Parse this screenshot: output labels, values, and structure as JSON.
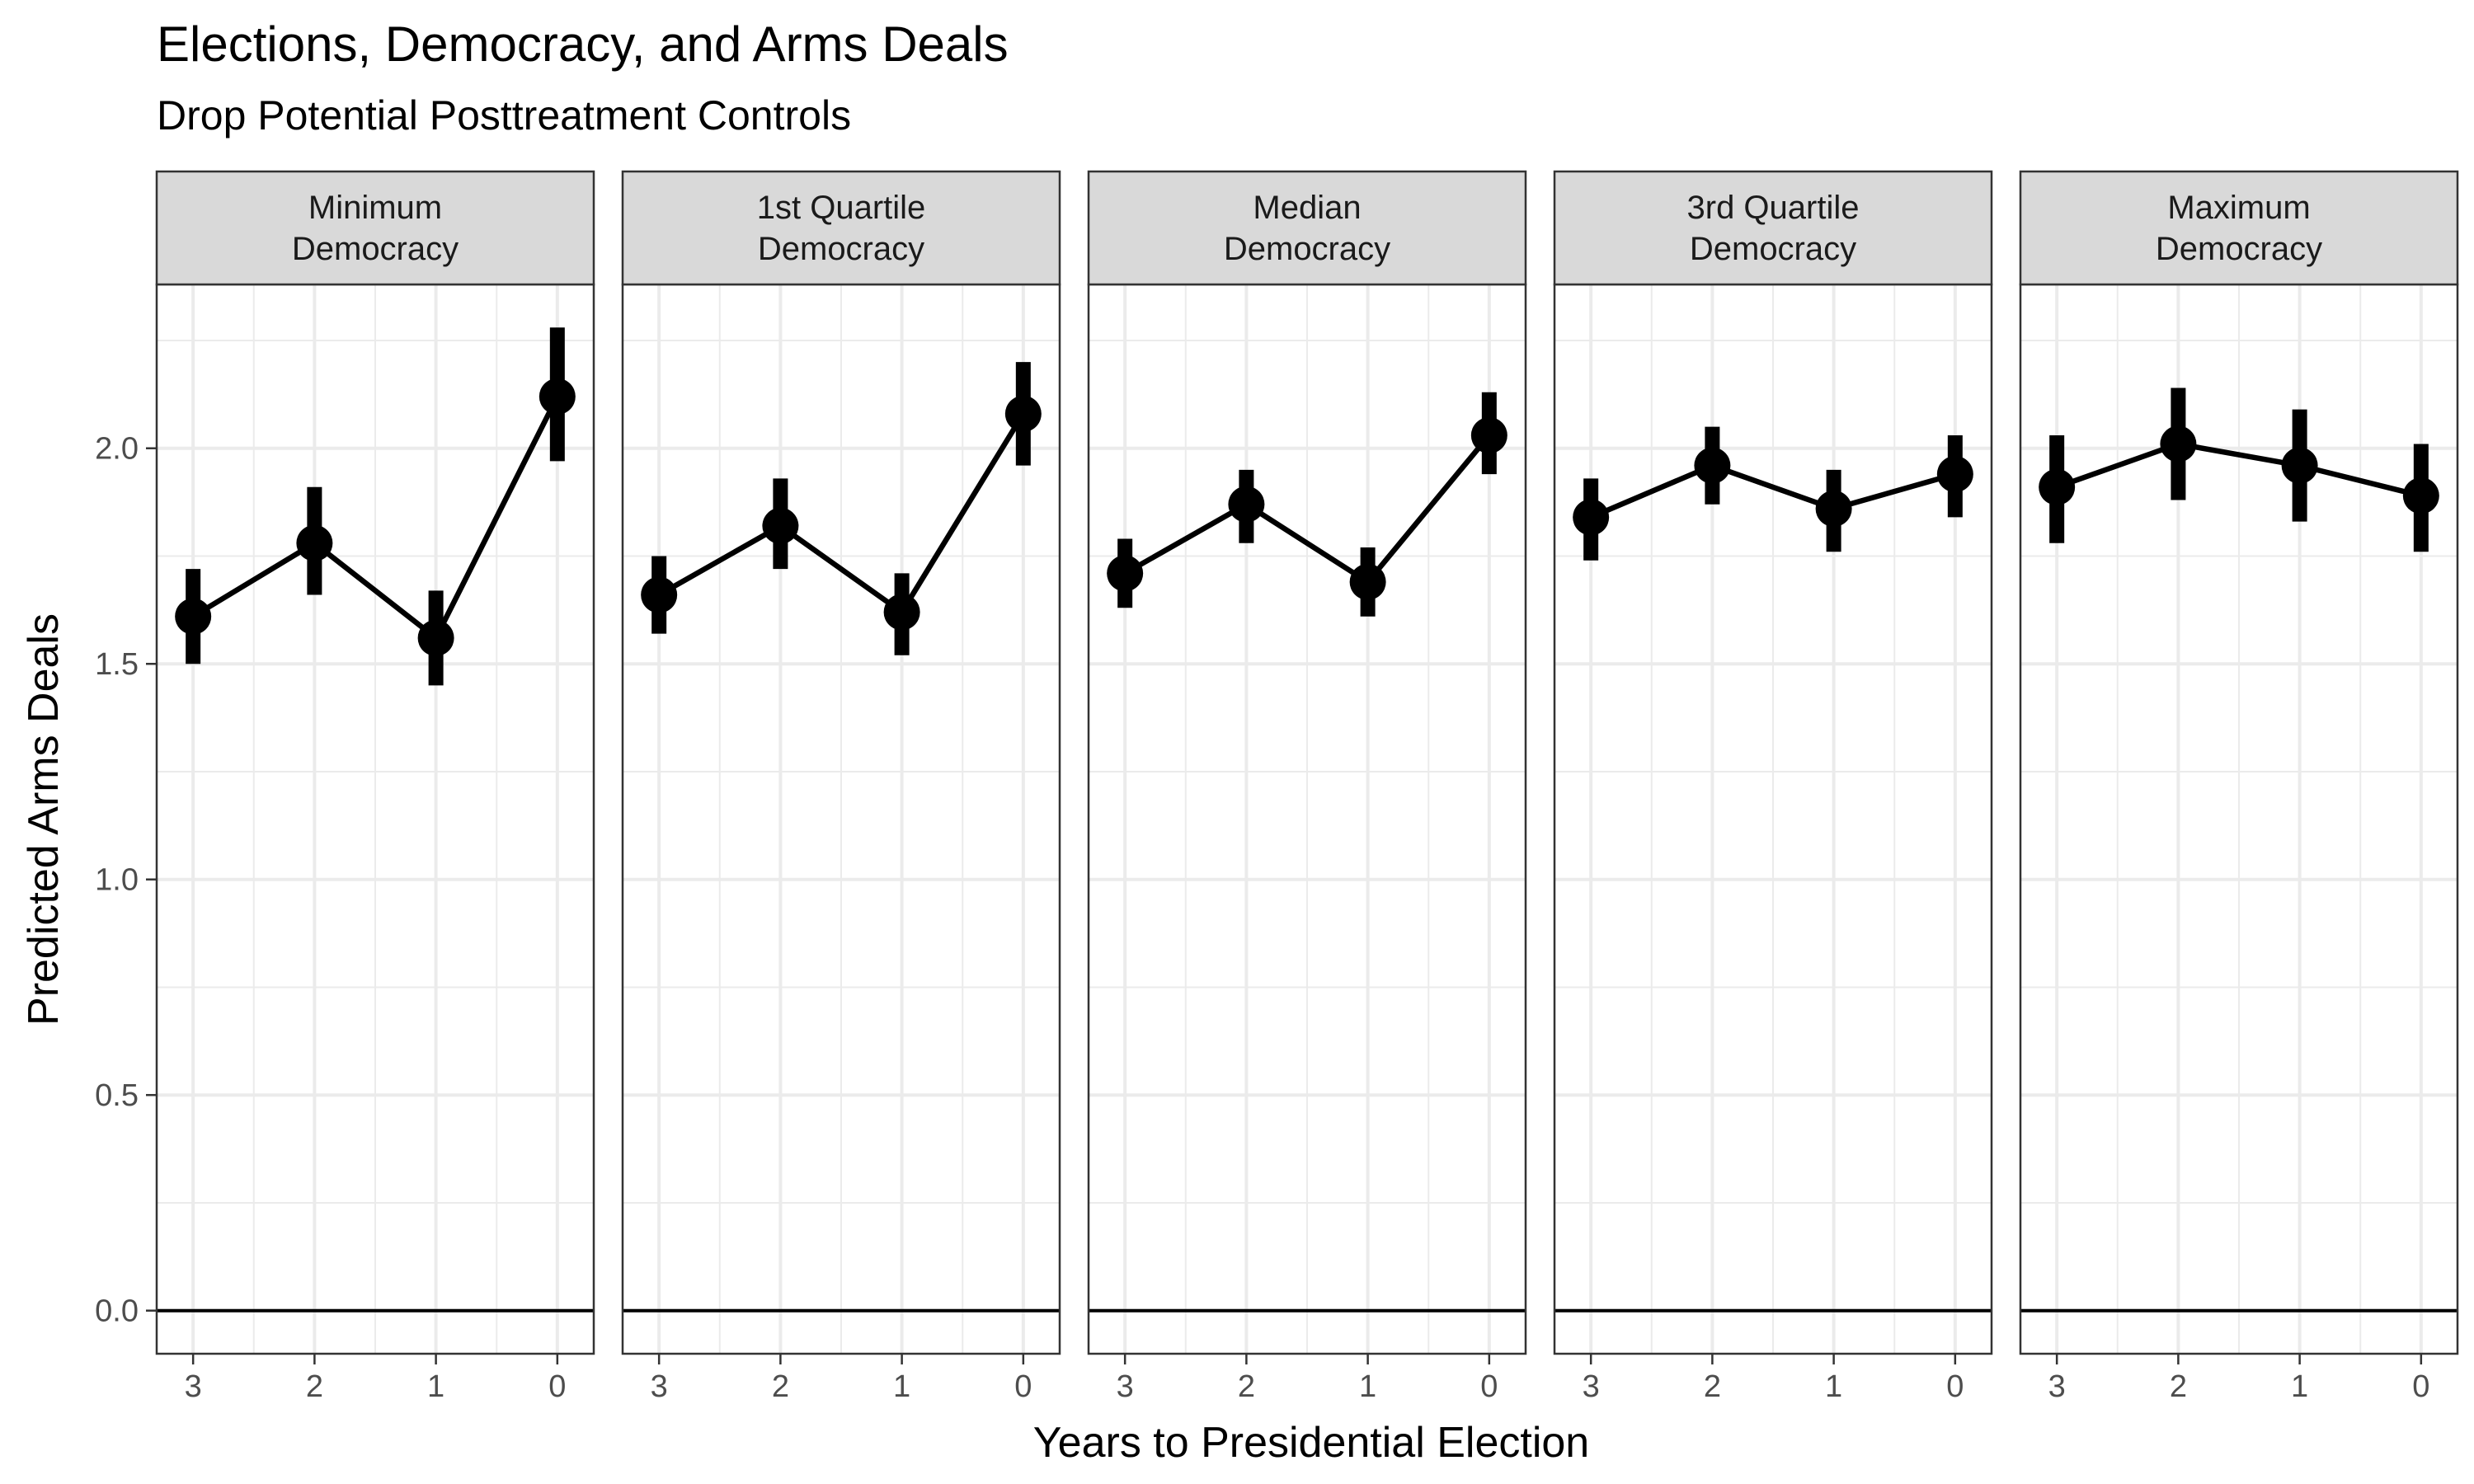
{
  "chart_data": {
    "type": "line",
    "title": "Elections, Democracy, and Arms Deals",
    "subtitle": "Drop Potential Posttreatment Controls",
    "xlabel": "Years to Presidential Election",
    "ylabel": "Predicted Arms Deals",
    "x": [
      3,
      2,
      1,
      0
    ],
    "x_tick_labels": [
      "3",
      "2",
      "1",
      "0"
    ],
    "x_order": "reversed",
    "ylim": [
      -0.1,
      2.38
    ],
    "y_ticks": [
      0.0,
      0.5,
      1.0,
      1.5,
      2.0
    ],
    "y_tick_labels": [
      "0.0",
      "0.5",
      "1.0",
      "1.5",
      "2.0"
    ],
    "hline": 0,
    "grid": true,
    "colors": {
      "line": "#000000",
      "strip_fill": "#d9d9d9",
      "grid": "#ebebeb",
      "panel_border": "#333333"
    },
    "panels": [
      {
        "strip": [
          "Minimum",
          "Democracy"
        ],
        "y": [
          1.61,
          1.78,
          1.56,
          2.12
        ],
        "lower": [
          1.5,
          1.66,
          1.45,
          1.97
        ],
        "upper": [
          1.72,
          1.91,
          1.67,
          2.28
        ]
      },
      {
        "strip": [
          "1st Quartile",
          "Democracy"
        ],
        "y": [
          1.66,
          1.82,
          1.62,
          2.08
        ],
        "lower": [
          1.57,
          1.72,
          1.52,
          1.96
        ],
        "upper": [
          1.75,
          1.93,
          1.71,
          2.2
        ]
      },
      {
        "strip": [
          "Median",
          "Democracy"
        ],
        "y": [
          1.71,
          1.87,
          1.69,
          2.03
        ],
        "lower": [
          1.63,
          1.78,
          1.61,
          1.94
        ],
        "upper": [
          1.79,
          1.95,
          1.77,
          2.13
        ]
      },
      {
        "strip": [
          "3rd Quartile",
          "Democracy"
        ],
        "y": [
          1.84,
          1.96,
          1.86,
          1.94
        ],
        "lower": [
          1.74,
          1.87,
          1.76,
          1.84
        ],
        "upper": [
          1.93,
          2.05,
          1.95,
          2.03
        ]
      },
      {
        "strip": [
          "Maximum",
          "Democracy"
        ],
        "y": [
          1.91,
          2.01,
          1.96,
          1.89
        ],
        "lower": [
          1.78,
          1.88,
          1.83,
          1.76
        ],
        "upper": [
          2.03,
          2.14,
          2.09,
          2.01
        ]
      }
    ]
  }
}
